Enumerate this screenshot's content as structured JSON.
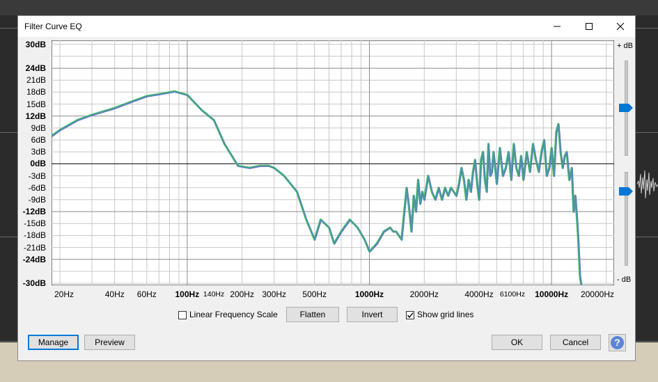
{
  "window": {
    "title": "Filter Curve EQ"
  },
  "graph": {
    "y_labels": [
      {
        "text": "30dB",
        "value": 30,
        "bold": true
      },
      {
        "text": "24dB",
        "value": 24,
        "bold": true
      },
      {
        "text": "21dB",
        "value": 21
      },
      {
        "text": "18dB",
        "value": 18
      },
      {
        "text": "15dB",
        "value": 15
      },
      {
        "text": "12dB",
        "value": 12,
        "bold": true
      },
      {
        "text": "9dB",
        "value": 9
      },
      {
        "text": "6dB",
        "value": 6
      },
      {
        "text": "3dB",
        "value": 3
      },
      {
        "text": "0dB",
        "value": 0,
        "bold": true
      },
      {
        "text": "-3dB",
        "value": -3
      },
      {
        "text": "-6dB",
        "value": -6
      },
      {
        "text": "-9dB",
        "value": -9
      },
      {
        "text": "-12dB",
        "value": -12,
        "bold": true
      },
      {
        "text": "-15dB",
        "value": -15
      },
      {
        "text": "-18dB",
        "value": -18
      },
      {
        "text": "-21dB",
        "value": -21
      },
      {
        "text": "-24dB",
        "value": -24,
        "bold": true
      },
      {
        "text": "-30dB",
        "value": -30,
        "bold": true
      }
    ],
    "x_labels": [
      {
        "text": "20Hz",
        "freq": 20
      },
      {
        "text": "40Hz",
        "freq": 40
      },
      {
        "text": "60Hz",
        "freq": 60
      },
      {
        "text": "100Hz",
        "freq": 100,
        "bold": true
      },
      {
        "text": "140Hz",
        "freq": 140,
        "small": true
      },
      {
        "text": "200Hz",
        "freq": 200
      },
      {
        "text": "300Hz",
        "freq": 300
      },
      {
        "text": "500Hz",
        "freq": 500
      },
      {
        "text": "1000Hz",
        "freq": 1000,
        "bold": true
      },
      {
        "text": "2000Hz",
        "freq": 2000
      },
      {
        "text": "4000Hz",
        "freq": 4000
      },
      {
        "text": "6100Hz",
        "freq": 6100,
        "small": true
      },
      {
        "text": "10000Hz",
        "freq": 10000,
        "bold": true
      },
      {
        "text": "20000Hz",
        "freq": 20000
      }
    ],
    "curve": [
      [
        18,
        7
      ],
      [
        20,
        8.5
      ],
      [
        25,
        11
      ],
      [
        30,
        12.3
      ],
      [
        40,
        14
      ],
      [
        50,
        15.7
      ],
      [
        60,
        17
      ],
      [
        70,
        17.5
      ],
      [
        85,
        18.2
      ],
      [
        100,
        17.3
      ],
      [
        120,
        13.5
      ],
      [
        140,
        11
      ],
      [
        160,
        5
      ],
      [
        190,
        -0.5
      ],
      [
        220,
        -1
      ],
      [
        250,
        -0.5
      ],
      [
        280,
        -0.5
      ],
      [
        300,
        -1
      ],
      [
        340,
        -3
      ],
      [
        400,
        -7
      ],
      [
        450,
        -14
      ],
      [
        500,
        -19
      ],
      [
        540,
        -14
      ],
      [
        600,
        -16
      ],
      [
        640,
        -20
      ],
      [
        700,
        -17
      ],
      [
        780,
        -14
      ],
      [
        860,
        -16
      ],
      [
        940,
        -19
      ],
      [
        1000,
        -22
      ],
      [
        1100,
        -20
      ],
      [
        1200,
        -17
      ],
      [
        1300,
        -16
      ],
      [
        1350,
        -17
      ],
      [
        1400,
        -17
      ],
      [
        1500,
        -19
      ],
      [
        1600,
        -6
      ],
      [
        1650,
        -11
      ],
      [
        1700,
        -17
      ],
      [
        1750,
        -8
      ],
      [
        1800,
        -12
      ],
      [
        1850,
        -4
      ],
      [
        1900,
        -10
      ],
      [
        1950,
        -7
      ],
      [
        2000,
        -9
      ],
      [
        2100,
        -3
      ],
      [
        2200,
        -7
      ],
      [
        2300,
        -9
      ],
      [
        2400,
        -6
      ],
      [
        2500,
        -9
      ],
      [
        2600,
        -6
      ],
      [
        2700,
        -8
      ],
      [
        2800,
        -6
      ],
      [
        2900,
        -7
      ],
      [
        3000,
        -8
      ],
      [
        3100,
        -5
      ],
      [
        3200,
        -1
      ],
      [
        3300,
        -4
      ],
      [
        3400,
        -9
      ],
      [
        3500,
        -4
      ],
      [
        3600,
        -7
      ],
      [
        3700,
        -2
      ],
      [
        3800,
        1
      ],
      [
        3900,
        -5
      ],
      [
        4000,
        -9
      ],
      [
        4100,
        1
      ],
      [
        4200,
        3
      ],
      [
        4300,
        -4
      ],
      [
        4400,
        -7
      ],
      [
        4500,
        5
      ],
      [
        4600,
        -3
      ],
      [
        4700,
        -2
      ],
      [
        4800,
        3
      ],
      [
        4900,
        -1
      ],
      [
        5000,
        -5
      ],
      [
        5200,
        4
      ],
      [
        5400,
        -3
      ],
      [
        5600,
        -1
      ],
      [
        5800,
        3
      ],
      [
        6000,
        -4
      ],
      [
        6200,
        5
      ],
      [
        6400,
        -1
      ],
      [
        6600,
        -3
      ],
      [
        6800,
        2
      ],
      [
        7000,
        -4
      ],
      [
        7300,
        3
      ],
      [
        7600,
        -2
      ],
      [
        7900,
        5
      ],
      [
        8200,
        1
      ],
      [
        8500,
        -2
      ],
      [
        8800,
        3
      ],
      [
        9100,
        6
      ],
      [
        9400,
        -3
      ],
      [
        9700,
        -1
      ],
      [
        10000,
        4
      ],
      [
        10300,
        -3
      ],
      [
        10600,
        8
      ],
      [
        10900,
        10
      ],
      [
        11200,
        3
      ],
      [
        11500,
        -1
      ],
      [
        11800,
        2
      ],
      [
        12100,
        3
      ],
      [
        12500,
        -4
      ],
      [
        12900,
        -1
      ],
      [
        13200,
        -12
      ],
      [
        13500,
        -8
      ],
      [
        13800,
        -14
      ],
      [
        14000,
        -19
      ],
      [
        14300,
        -28
      ],
      [
        14700,
        -32
      ],
      [
        15500,
        -33
      ],
      [
        18000,
        -33
      ],
      [
        20000,
        -33
      ]
    ],
    "right_top_label": "+ dB",
    "right_bottom_label": "- dB"
  },
  "controls": {
    "linear_freq_label": "Linear Frequency Scale",
    "linear_freq_checked": false,
    "flatten_label": "Flatten",
    "invert_label": "Invert",
    "grid_label": "Show grid lines",
    "grid_checked": true
  },
  "footer": {
    "manage_label": "Manage",
    "preview_label": "Preview",
    "ok_label": "OK",
    "cancel_label": "Cancel",
    "help_symbol": "?"
  }
}
